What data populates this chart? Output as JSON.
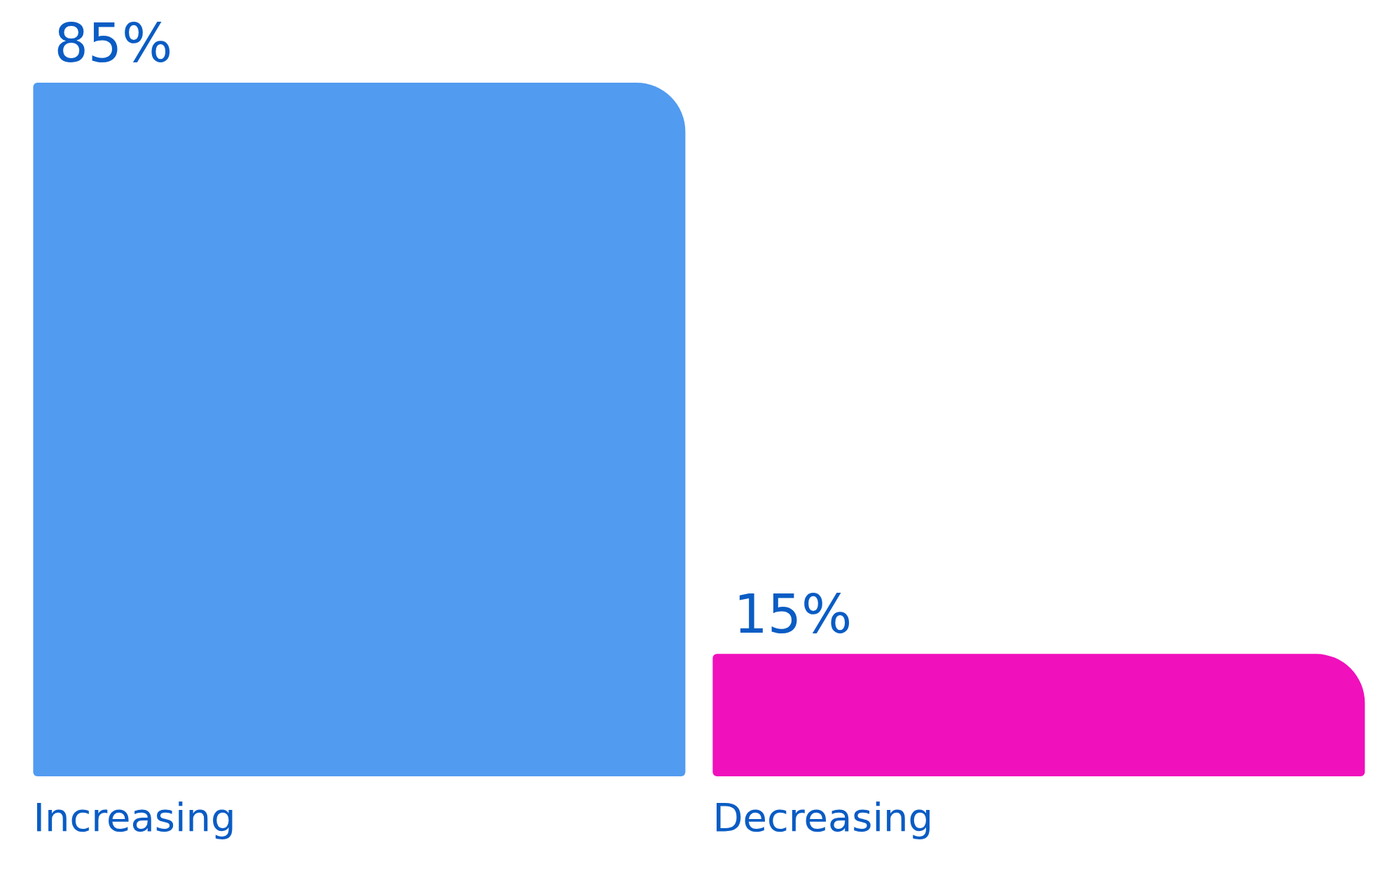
{
  "chart_data": {
    "type": "bar",
    "categories": [
      "Increasing",
      "Decreasing"
    ],
    "values": [
      85,
      15
    ],
    "colors": [
      "#519bf0",
      "#f010bc"
    ],
    "value_labels": [
      "85%",
      "15%"
    ],
    "grid": false,
    "legend": false
  }
}
